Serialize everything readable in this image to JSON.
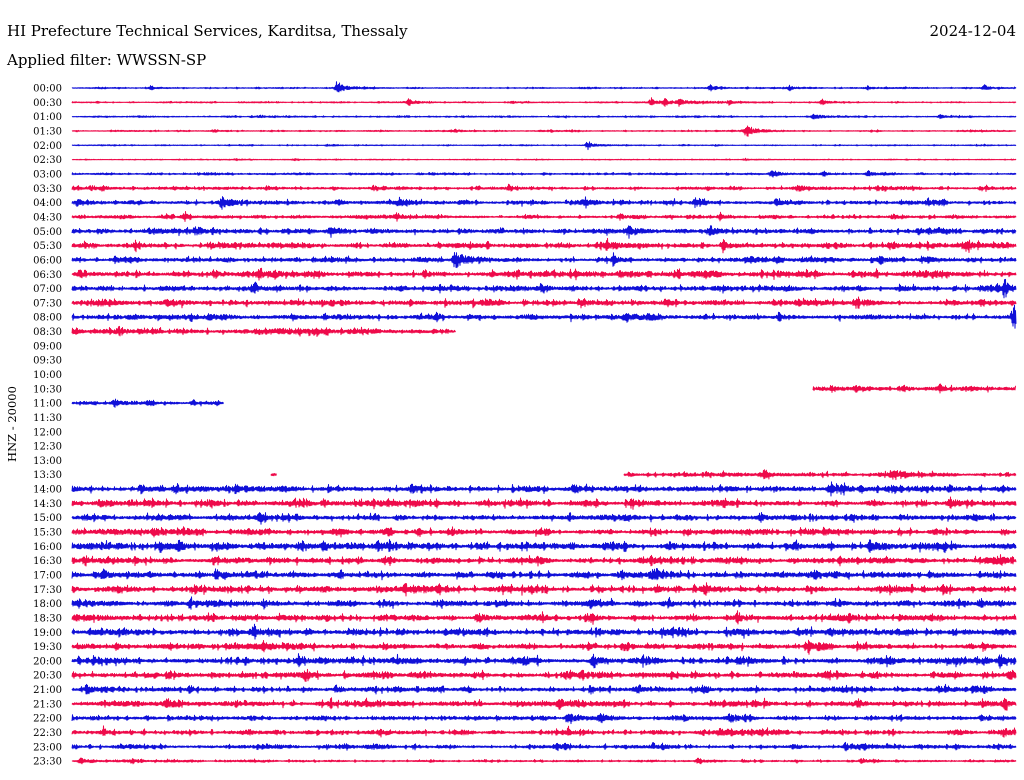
{
  "chart_data": {
    "type": "line",
    "title": "HI Prefecture Technical Services, Karditsa, Thessaly",
    "date": "2024-12-04",
    "subtitle": "Applied filter: WWSSN-SP",
    "ylabel": "HNZ - 20000",
    "xlim": [
      0,
      30
    ],
    "series_colors": [
      "#1010d8",
      "#ee0a4a"
    ],
    "rows": [
      {
        "label": "00:00",
        "amp": 0.08,
        "segments": [
          [
            0,
            30
          ]
        ],
        "events": [
          [
            2.5,
            0.35
          ],
          [
            8.45,
            1.15
          ],
          [
            20.3,
            0.4
          ],
          [
            22.8,
            0.3
          ],
          [
            25.3,
            0.2
          ],
          [
            29.0,
            0.35
          ]
        ]
      },
      {
        "label": "00:30",
        "amp": 0.07,
        "segments": [
          [
            0,
            30
          ]
        ],
        "events": [
          [
            10.7,
            0.55
          ],
          [
            14.0,
            0.15
          ],
          [
            18.4,
            0.6
          ],
          [
            18.85,
            0.45
          ],
          [
            19.3,
            0.55
          ],
          [
            20.9,
            0.45
          ],
          [
            23.85,
            0.4
          ]
        ]
      },
      {
        "label": "01:00",
        "amp": 0.08,
        "segments": [
          [
            0,
            30
          ]
        ],
        "events": [
          [
            6.0,
            0.15
          ],
          [
            23.6,
            0.55
          ],
          [
            27.6,
            0.3
          ]
        ]
      },
      {
        "label": "01:30",
        "amp": 0.08,
        "segments": [
          [
            0,
            30
          ]
        ],
        "events": [
          [
            4.5,
            0.15
          ],
          [
            12.2,
            0.25
          ],
          [
            21.45,
            1.0
          ]
        ]
      },
      {
        "label": "02:00",
        "amp": 0.06,
        "segments": [
          [
            0,
            30
          ]
        ],
        "events": [
          [
            8.1,
            0.15
          ],
          [
            16.4,
            0.6
          ]
        ]
      },
      {
        "label": "02:30",
        "amp": 0.05,
        "segments": [
          [
            0,
            30
          ]
        ],
        "events": [
          [
            5.2,
            0.15
          ],
          [
            7.1,
            0.12
          ],
          [
            21.4,
            0.15
          ]
        ]
      },
      {
        "label": "03:00",
        "amp": 0.1,
        "segments": [
          [
            0,
            30
          ]
        ],
        "events": [
          [
            15.0,
            0.15
          ],
          [
            22.25,
            0.6
          ],
          [
            23.9,
            0.35
          ],
          [
            25.3,
            0.4
          ]
        ]
      },
      {
        "label": "03:30",
        "amp": 0.18,
        "segments": [
          [
            0,
            30
          ]
        ],
        "events": [
          [
            0.6,
            0.45
          ],
          [
            6.2,
            0.3
          ],
          [
            9.6,
            0.35
          ],
          [
            13.9,
            0.45
          ],
          [
            23.1,
            0.4
          ],
          [
            25.6,
            0.35
          ]
        ]
      },
      {
        "label": "04:00",
        "amp": 0.22,
        "segments": [
          [
            0,
            30
          ]
        ],
        "events": [
          [
            0.2,
            0.4
          ],
          [
            4.77,
            1.0
          ],
          [
            10.4,
            0.55
          ],
          [
            16.3,
            0.65
          ],
          [
            19.8,
            0.7
          ],
          [
            22.4,
            0.4
          ],
          [
            27.2,
            0.35
          ]
        ]
      },
      {
        "label": "04:30",
        "amp": 0.18,
        "segments": [
          [
            0,
            30
          ]
        ],
        "events": [
          [
            3.6,
            0.7
          ],
          [
            10.3,
            0.45
          ],
          [
            17.4,
            0.45
          ],
          [
            20.6,
            0.5
          ],
          [
            26.1,
            0.35
          ]
        ]
      },
      {
        "label": "05:00",
        "amp": 0.25,
        "segments": [
          [
            0,
            30
          ]
        ],
        "events": [
          [
            4.0,
            0.4
          ],
          [
            8.2,
            0.45
          ],
          [
            17.7,
            0.75
          ],
          [
            20.3,
            0.7
          ],
          [
            26.9,
            0.35
          ]
        ]
      },
      {
        "label": "05:30",
        "amp": 0.28,
        "segments": [
          [
            0,
            30
          ]
        ],
        "events": [
          [
            2.0,
            0.55
          ],
          [
            17.0,
            0.8
          ],
          [
            20.7,
            0.75
          ],
          [
            26.0,
            0.6
          ],
          [
            28.5,
            0.55
          ]
        ]
      },
      {
        "label": "06:00",
        "amp": 0.25,
        "segments": [
          [
            0,
            30
          ]
        ],
        "events": [
          [
            1.4,
            0.5
          ],
          [
            12.2,
            1.7
          ],
          [
            17.2,
            0.6
          ],
          [
            21.6,
            0.7
          ],
          [
            25.7,
            0.55
          ],
          [
            27.0,
            0.45
          ]
        ]
      },
      {
        "label": "06:30",
        "amp": 0.32,
        "segments": [
          [
            0,
            30
          ]
        ],
        "events": [
          [
            0.25,
            0.6
          ],
          [
            4.5,
            0.55
          ],
          [
            5.97,
            0.9
          ],
          [
            15.99,
            0.6
          ],
          [
            27.4,
            0.55
          ]
        ]
      },
      {
        "label": "07:00",
        "amp": 0.28,
        "segments": [
          [
            0,
            30
          ]
        ],
        "events": [
          [
            5.8,
            0.9
          ],
          [
            14.0,
            0.4
          ],
          [
            29.65,
            1.1
          ]
        ]
      },
      {
        "label": "07:30",
        "amp": 0.3,
        "segments": [
          [
            0,
            30
          ]
        ],
        "events": [
          [
            3.0,
            0.55
          ],
          [
            16.2,
            0.7
          ],
          [
            23.1,
            0.55
          ],
          [
            24.9,
            0.55
          ]
        ]
      },
      {
        "label": "08:00",
        "amp": 0.3,
        "segments": [
          [
            0,
            30
          ]
        ],
        "events": [
          [
            3.8,
            0.45
          ],
          [
            12.6,
            0.5
          ],
          [
            17.6,
            0.45
          ],
          [
            29.94,
            1.2
          ]
        ]
      },
      {
        "label": "08:30",
        "amp": 0.3,
        "segments": [
          [
            0,
            12.2
          ]
        ],
        "events": [
          [
            1.5,
            0.45
          ],
          [
            9.0,
            0.35
          ]
        ]
      },
      {
        "label": "09:00",
        "amp": 0,
        "segments": [],
        "events": []
      },
      {
        "label": "09:30",
        "amp": 0,
        "segments": [],
        "events": []
      },
      {
        "label": "10:00",
        "amp": 0,
        "segments": [],
        "events": []
      },
      {
        "label": "10:30",
        "amp": 0.25,
        "segments": [
          [
            23.55,
            30
          ]
        ],
        "events": [
          [
            24.9,
            0.4
          ],
          [
            27.6,
            0.35
          ]
        ]
      },
      {
        "label": "11:00",
        "amp": 0.22,
        "segments": [
          [
            0,
            4.83
          ]
        ],
        "events": [
          [
            1.37,
            0.5
          ]
        ]
      },
      {
        "label": "11:30",
        "amp": 0,
        "segments": [],
        "events": []
      },
      {
        "label": "12:00",
        "amp": 0,
        "segments": [],
        "events": []
      },
      {
        "label": "12:30",
        "amp": 0,
        "segments": [],
        "events": []
      },
      {
        "label": "13:00",
        "amp": 0,
        "segments": [],
        "events": []
      },
      {
        "label": "13:30",
        "amp": 0.25,
        "segments": [
          [
            6.32,
            6.51
          ],
          [
            17.54,
            30
          ]
        ],
        "events": [
          [
            22.0,
            0.6
          ],
          [
            26.15,
            0.6
          ]
        ]
      },
      {
        "label": "14:00",
        "amp": 0.32,
        "segments": [
          [
            0,
            30
          ]
        ],
        "events": [
          [
            2.2,
            0.6
          ],
          [
            3.3,
            0.55
          ],
          [
            5.2,
            0.6
          ],
          [
            10.8,
            0.5
          ],
          [
            16.0,
            0.55
          ],
          [
            24.1,
            0.9
          ],
          [
            26.1,
            0.5
          ]
        ]
      },
      {
        "label": "14:30",
        "amp": 0.32,
        "segments": [
          [
            0,
            30
          ]
        ],
        "events": [
          [
            0.9,
            0.5
          ],
          [
            8.0,
            0.5
          ],
          [
            13.2,
            0.55
          ],
          [
            17.8,
            0.6
          ],
          [
            20.75,
            0.5
          ],
          [
            27.9,
            0.5
          ]
        ]
      },
      {
        "label": "15:00",
        "amp": 0.3,
        "segments": [
          [
            0,
            30
          ]
        ],
        "events": [
          [
            6.0,
            0.55
          ],
          [
            15.8,
            0.5
          ],
          [
            21.9,
            0.55
          ],
          [
            28.7,
            0.6
          ]
        ]
      },
      {
        "label": "15:30",
        "amp": 0.3,
        "segments": [
          [
            0,
            30
          ]
        ],
        "events": [
          [
            2.6,
            0.5
          ],
          [
            12.1,
            0.6
          ],
          [
            19.6,
            0.5
          ],
          [
            23.9,
            0.55
          ],
          [
            29.65,
            0.5
          ]
        ]
      },
      {
        "label": "16:00",
        "amp": 0.35,
        "segments": [
          [
            0,
            30
          ]
        ],
        "events": [
          [
            3.4,
            0.5
          ],
          [
            8.0,
            0.55
          ],
          [
            9.7,
            0.6
          ],
          [
            16.9,
            0.5
          ],
          [
            23.0,
            0.5
          ],
          [
            25.4,
            0.75
          ]
        ]
      },
      {
        "label": "16:30",
        "amp": 0.32,
        "segments": [
          [
            0,
            30
          ]
        ],
        "events": [
          [
            0.4,
            0.5
          ],
          [
            4.5,
            0.5
          ],
          [
            18.4,
            0.5
          ],
          [
            24.4,
            0.5
          ],
          [
            29.5,
            0.55
          ]
        ]
      },
      {
        "label": "17:00",
        "amp": 0.32,
        "segments": [
          [
            0,
            30
          ]
        ],
        "events": [
          [
            1.0,
            0.5
          ],
          [
            4.6,
            0.55
          ],
          [
            13.3,
            0.5
          ],
          [
            18.5,
            0.55
          ],
          [
            23.6,
            0.5
          ]
        ]
      },
      {
        "label": "17:30",
        "amp": 0.33,
        "segments": [
          [
            0,
            30
          ]
        ],
        "events": [
          [
            10.6,
            0.5
          ],
          [
            14.6,
            0.5
          ],
          [
            18.6,
            0.6
          ],
          [
            20.1,
            0.55
          ],
          [
            27.7,
            0.55
          ]
        ]
      },
      {
        "label": "18:00",
        "amp": 0.32,
        "segments": [
          [
            0,
            30
          ]
        ],
        "events": [
          [
            3.75,
            0.6
          ],
          [
            6.1,
            0.55
          ],
          [
            16.5,
            0.5
          ],
          [
            24.2,
            0.5
          ],
          [
            28.9,
            0.5
          ]
        ]
      },
      {
        "label": "18:30",
        "amp": 0.32,
        "segments": [
          [
            0,
            30
          ]
        ],
        "events": [
          [
            6.6,
            0.5
          ],
          [
            12.9,
            0.55
          ],
          [
            16.5,
            0.5
          ],
          [
            21.2,
            0.55
          ],
          [
            24.7,
            0.5
          ]
        ]
      },
      {
        "label": "19:00",
        "amp": 0.32,
        "segments": [
          [
            0,
            30
          ]
        ],
        "events": [
          [
            0.6,
            0.55
          ],
          [
            5.8,
            0.8
          ],
          [
            18.75,
            0.6
          ],
          [
            23.1,
            0.55
          ],
          [
            24.1,
            0.6
          ]
        ]
      },
      {
        "label": "19:30",
        "amp": 0.3,
        "segments": [
          [
            0,
            30
          ]
        ],
        "events": [
          [
            6.1,
            0.55
          ],
          [
            17.6,
            0.5
          ],
          [
            23.4,
            0.6
          ],
          [
            29.0,
            0.55
          ]
        ]
      },
      {
        "label": "20:00",
        "amp": 0.35,
        "segments": [
          [
            0,
            30
          ]
        ],
        "events": [
          [
            0.7,
            0.55
          ],
          [
            7.2,
            0.7
          ],
          [
            16.6,
            0.9
          ],
          [
            21.2,
            0.55
          ],
          [
            29.5,
            0.95
          ]
        ]
      },
      {
        "label": "20:30",
        "amp": 0.32,
        "segments": [
          [
            0,
            30
          ]
        ],
        "events": [
          [
            3.1,
            0.5
          ],
          [
            7.4,
            0.55
          ],
          [
            15.7,
            0.55
          ],
          [
            23.9,
            0.5
          ],
          [
            29.8,
            0.55
          ]
        ]
      },
      {
        "label": "21:00",
        "amp": 0.3,
        "segments": [
          [
            0,
            30
          ]
        ],
        "events": [
          [
            0.5,
            0.5
          ],
          [
            3.75,
            0.5
          ],
          [
            10.3,
            0.5
          ],
          [
            16.5,
            0.5
          ],
          [
            28.7,
            0.5
          ]
        ]
      },
      {
        "label": "21:30",
        "amp": 0.3,
        "segments": [
          [
            0,
            30
          ]
        ],
        "events": [
          [
            3.05,
            0.55
          ],
          [
            8.2,
            0.5
          ],
          [
            15.5,
            0.55
          ],
          [
            25.0,
            0.5
          ],
          [
            29.65,
            0.5
          ]
        ]
      },
      {
        "label": "22:00",
        "amp": 0.22,
        "segments": [
          [
            0,
            30
          ]
        ],
        "events": [
          [
            15.8,
            0.85
          ],
          [
            16.8,
            0.55
          ],
          [
            20.9,
            0.45
          ],
          [
            28.9,
            0.4
          ]
        ]
      },
      {
        "label": "22:30",
        "amp": 0.25,
        "segments": [
          [
            0,
            30
          ]
        ],
        "events": [
          [
            1.0,
            0.5
          ],
          [
            9.8,
            0.5
          ],
          [
            15.8,
            0.55
          ],
          [
            20.6,
            0.45
          ],
          [
            29.65,
            0.5
          ]
        ]
      },
      {
        "label": "23:00",
        "amp": 0.22,
        "segments": [
          [
            0,
            30
          ]
        ],
        "events": [
          [
            8.7,
            0.4
          ],
          [
            15.7,
            0.45
          ],
          [
            24.6,
            0.45
          ],
          [
            28.1,
            0.4
          ]
        ]
      },
      {
        "label": "23:30",
        "amp": 0.12,
        "segments": [
          [
            0,
            30
          ]
        ],
        "events": [
          [
            0.3,
            0.35
          ],
          [
            1.9,
            0.3
          ],
          [
            19.9,
            0.45
          ],
          [
            25.1,
            0.35
          ]
        ]
      }
    ]
  }
}
